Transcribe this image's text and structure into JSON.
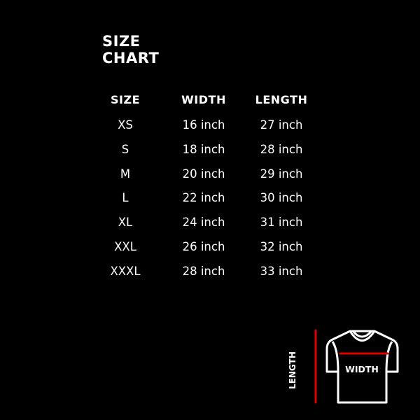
{
  "title": {
    "line1": "SIZE",
    "line2": "CHART"
  },
  "headers": [
    "SIZE",
    "WIDTH",
    "LENGTH"
  ],
  "rows": [
    [
      "XS",
      "16 inch",
      "27 inch"
    ],
    [
      "S",
      "18 inch",
      "28 inch"
    ],
    [
      "M",
      "20 inch",
      "29 inch"
    ],
    [
      "L",
      "22 inch",
      "30 inch"
    ],
    [
      "XL",
      "24 inch",
      "31 inch"
    ],
    [
      "XXL",
      "26 inch",
      "32 inch"
    ],
    [
      "XXXL",
      "28 inch",
      "33 inch"
    ]
  ],
  "diagram": {
    "length_label": "LENGTH",
    "width_label": "WIDTH",
    "icon": "t-shirt-icon",
    "measure_color": "#e00000"
  }
}
